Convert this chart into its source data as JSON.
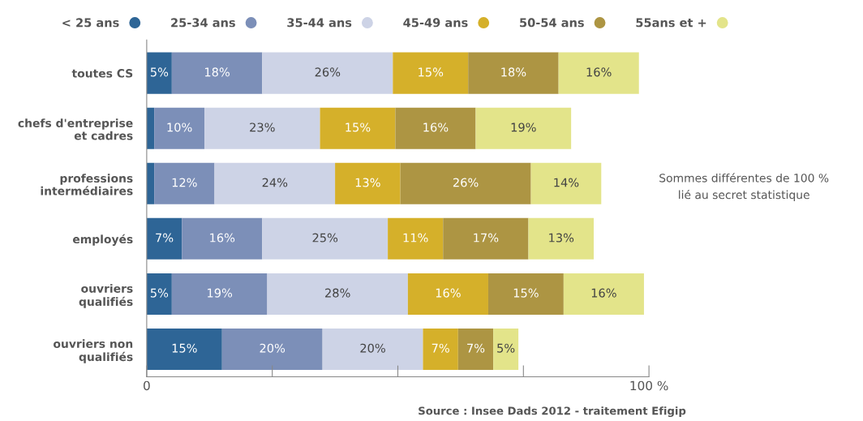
{
  "chart_data": {
    "type": "bar",
    "orientation": "horizontal",
    "stacked": true,
    "legend": "top",
    "grid": false,
    "categories": [
      "toutes CS",
      "chefs d'entreprise\net cadres",
      "professions\nintermédiaires",
      "employés",
      "ouvriers\nqualifiés",
      "ouvriers non\nqualifiés"
    ],
    "series": [
      {
        "name": "< 25 ans",
        "color": "#2e6596",
        "values": [
          5,
          1.5,
          1.5,
          7,
          5,
          15
        ],
        "value_labels": [
          "5%",
          null,
          null,
          "7%",
          "5%",
          "15%"
        ]
      },
      {
        "name": "25-34 ans",
        "color": "#7c8fb8",
        "values": [
          18,
          10,
          12,
          16,
          19,
          20
        ],
        "value_labels": [
          "18%",
          "10%",
          "12%",
          "16%",
          "19%",
          "20%"
        ]
      },
      {
        "name": "35-44 ans",
        "color": "#cdd3e6",
        "values": [
          26,
          23,
          24,
          25,
          28,
          20
        ],
        "value_labels": [
          "26%",
          "23%",
          "24%",
          "25%",
          "28%",
          "20%"
        ]
      },
      {
        "name": "45-49 ans",
        "color": "#d5b02a",
        "values": [
          15,
          15,
          13,
          11,
          16,
          7
        ],
        "value_labels": [
          "15%",
          "15%",
          "13%",
          "11%",
          "16%",
          "7%"
        ]
      },
      {
        "name": "50-54 ans",
        "color": "#ad9543",
        "values": [
          18,
          16,
          26,
          17,
          15,
          7
        ],
        "value_labels": [
          "18%",
          "16%",
          "26%",
          "17%",
          "15%",
          "7%"
        ]
      },
      {
        "name": "55ans et +",
        "color": "#e3e48a",
        "values": [
          16,
          19,
          14,
          13,
          16,
          5
        ],
        "value_labels": [
          "16%",
          "19%",
          "14%",
          "13%",
          "16%",
          "5%"
        ]
      }
    ],
    "xlim": [
      0,
      100
    ],
    "xticks": [
      0,
      {
        "value": 25,
        "label": null
      },
      {
        "value": 50,
        "label": null
      },
      {
        "value": 75,
        "label": null
      },
      {
        "value": 100,
        "label": "100 %"
      }
    ],
    "annotations": [
      "Sommes différentes de 100 %\nlié au secret statistique",
      "Source : Insee Dads 2012 - traitement Efigip"
    ]
  }
}
